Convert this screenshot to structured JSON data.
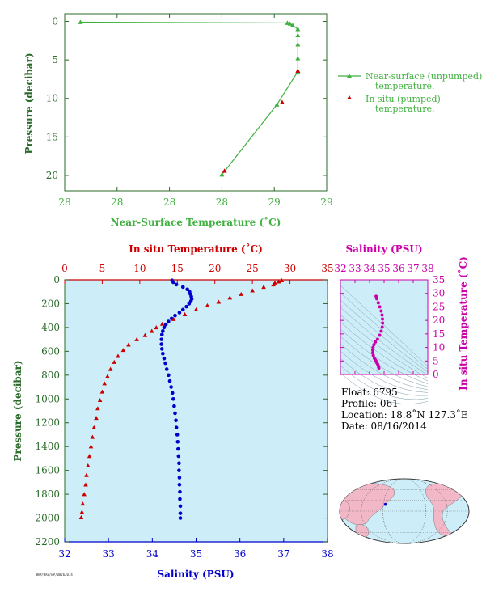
{
  "colors": {
    "green": "#40b040",
    "axis_green": "#2a6a2a",
    "red": "#cc0000",
    "blue": "#0000cc",
    "magenta": "#cc00aa",
    "panel_bg": "#cdeef8"
  },
  "chart_data": [
    {
      "type": "line",
      "title": "",
      "xlabel": "Near-Surface Temperature (˚C)",
      "ylabel": "Pressure (decibar)",
      "x_tick_labels": [
        "28",
        "28",
        "28",
        "28",
        "29",
        "29"
      ],
      "y_ticks": [
        "0",
        "5",
        "10",
        "15",
        "20"
      ],
      "xlim": [
        28.0,
        29.0
      ],
      "ylim": [
        22,
        -1
      ],
      "legend_position": "right",
      "series": [
        {
          "name": "Near-surface (unpumped) temperature.",
          "marker": "triangle",
          "color": "#40b040",
          "points": [
            [
              28.06,
              0.1
            ],
            [
              28.85,
              0.2
            ],
            [
              28.86,
              0.3
            ],
            [
              28.87,
              0.5
            ],
            [
              28.89,
              1
            ],
            [
              28.89,
              1.8
            ],
            [
              28.89,
              3
            ],
            [
              28.89,
              4.8
            ],
            [
              28.89,
              6.5
            ],
            [
              28.81,
              10.8
            ],
            [
              28.6,
              19.9
            ]
          ]
        },
        {
          "name": "In situ (pumped) temperature.",
          "marker": "triangle",
          "color": "#cc0000",
          "points": [
            [
              28.89,
              6.4
            ],
            [
              28.83,
              10.5
            ],
            [
              28.61,
              19.4
            ]
          ]
        }
      ]
    },
    {
      "type": "line",
      "title": "",
      "top_axis_label": "In situ Temperature (˚C)",
      "top_ticks": [
        "0",
        "5",
        "10",
        "15",
        "20",
        "25",
        "30",
        "35"
      ],
      "xlabel": "Salinity (PSU)",
      "x_ticks": [
        "32",
        "33",
        "34",
        "35",
        "36",
        "37",
        "38"
      ],
      "ylabel": "Pressure (decibar)",
      "y_ticks": [
        "0",
        "200",
        "400",
        "600",
        "800",
        "1000",
        "1200",
        "1400",
        "1600",
        "1800",
        "2000",
        "2200"
      ],
      "temperature_range": [
        0,
        35
      ],
      "salinity_range": [
        32,
        38
      ],
      "pressure_range": [
        0,
        2200
      ],
      "series": [
        {
          "name": "In situ Temperature",
          "color": "#cc0000",
          "marker": "triangle",
          "points": [
            [
              28.9,
              5
            ],
            [
              28.5,
              15
            ],
            [
              28.0,
              25
            ],
            [
              27.8,
              40
            ],
            [
              26.5,
              60
            ],
            [
              25.0,
              90
            ],
            [
              23.5,
              120
            ],
            [
              22.0,
              150
            ],
            [
              20.5,
              185
            ],
            [
              19.0,
              215
            ],
            [
              17.5,
              250
            ],
            [
              16.0,
              290
            ],
            [
              14.5,
              330
            ],
            [
              13.0,
              370
            ],
            [
              12.2,
              400
            ],
            [
              11.6,
              430
            ],
            [
              10.7,
              465
            ],
            [
              9.6,
              500
            ],
            [
              8.5,
              545
            ],
            [
              7.8,
              590
            ],
            [
              7.1,
              640
            ],
            [
              6.6,
              690
            ],
            [
              6.1,
              750
            ],
            [
              5.7,
              810
            ],
            [
              5.3,
              870
            ],
            [
              5.0,
              940
            ],
            [
              4.7,
              1010
            ],
            [
              4.4,
              1080
            ],
            [
              4.2,
              1160
            ],
            [
              3.9,
              1240
            ],
            [
              3.7,
              1320
            ],
            [
              3.5,
              1400
            ],
            [
              3.3,
              1480
            ],
            [
              3.1,
              1560
            ],
            [
              2.9,
              1640
            ],
            [
              2.8,
              1720
            ],
            [
              2.6,
              1800
            ],
            [
              2.4,
              1880
            ],
            [
              2.3,
              1950
            ],
            [
              2.2,
              1995
            ]
          ]
        },
        {
          "name": "Salinity",
          "color": "#0000cc",
          "marker": "dot",
          "points": [
            [
              34.45,
              5
            ],
            [
              34.48,
              20
            ],
            [
              34.55,
              40
            ],
            [
              34.7,
              60
            ],
            [
              34.8,
              80
            ],
            [
              34.85,
              100
            ],
            [
              34.87,
              120
            ],
            [
              34.89,
              140
            ],
            [
              34.9,
              160
            ],
            [
              34.88,
              180
            ],
            [
              34.84,
              200
            ],
            [
              34.78,
              225
            ],
            [
              34.7,
              250
            ],
            [
              34.62,
              275
            ],
            [
              34.52,
              300
            ],
            [
              34.44,
              325
            ],
            [
              34.37,
              350
            ],
            [
              34.31,
              375
            ],
            [
              34.27,
              400
            ],
            [
              34.24,
              430
            ],
            [
              34.22,
              460
            ],
            [
              34.21,
              500
            ],
            [
              34.21,
              540
            ],
            [
              34.22,
              580
            ],
            [
              34.24,
              620
            ],
            [
              34.27,
              660
            ],
            [
              34.3,
              700
            ],
            [
              34.33,
              750
            ],
            [
              34.37,
              800
            ],
            [
              34.4,
              850
            ],
            [
              34.43,
              900
            ],
            [
              34.46,
              950
            ],
            [
              34.48,
              1000
            ],
            [
              34.5,
              1060
            ],
            [
              34.52,
              1120
            ],
            [
              34.54,
              1180
            ],
            [
              34.55,
              1240
            ],
            [
              34.57,
              1300
            ],
            [
              34.58,
              1360
            ],
            [
              34.59,
              1420
            ],
            [
              34.6,
              1480
            ],
            [
              34.61,
              1540
            ],
            [
              34.61,
              1600
            ],
            [
              34.62,
              1660
            ],
            [
              34.62,
              1720
            ],
            [
              34.63,
              1780
            ],
            [
              34.63,
              1840
            ],
            [
              34.64,
              1900
            ],
            [
              34.64,
              1960
            ],
            [
              34.64,
              2000
            ]
          ]
        }
      ]
    },
    {
      "type": "scatter",
      "title": "",
      "xlabel": "Salinity (PSU)",
      "ylabel": "In situ Temperature (˚C)",
      "x_ticks": [
        "32",
        "33",
        "34",
        "35",
        "36",
        "37",
        "38"
      ],
      "y_ticks": [
        "0",
        "5",
        "10",
        "15",
        "20",
        "25",
        "30",
        "35"
      ],
      "xlim": [
        32,
        38
      ],
      "ylim": [
        0,
        35
      ],
      "color": "#cc00aa",
      "points": [
        [
          34.45,
          28.9
        ],
        [
          34.5,
          28.0
        ],
        [
          34.6,
          26.5
        ],
        [
          34.7,
          25.0
        ],
        [
          34.8,
          23.5
        ],
        [
          34.86,
          22.0
        ],
        [
          34.89,
          20.5
        ],
        [
          34.9,
          19.0
        ],
        [
          34.87,
          17.5
        ],
        [
          34.8,
          16.0
        ],
        [
          34.7,
          14.5
        ],
        [
          34.55,
          13.0
        ],
        [
          34.4,
          12.0
        ],
        [
          34.3,
          11.0
        ],
        [
          34.24,
          10.0
        ],
        [
          34.22,
          9.0
        ],
        [
          34.22,
          8.0
        ],
        [
          34.26,
          7.0
        ],
        [
          34.33,
          6.0
        ],
        [
          34.4,
          5.4
        ],
        [
          34.45,
          4.9
        ],
        [
          34.5,
          4.4
        ],
        [
          34.55,
          3.9
        ],
        [
          34.59,
          3.4
        ],
        [
          34.62,
          2.8
        ],
        [
          34.64,
          2.3
        ]
      ]
    }
  ],
  "info": {
    "float": "Float:  6795",
    "profile": "Profile:  061",
    "location": "Location:  18.8˚N  127.3˚E",
    "date": "Date:  08/16/2014"
  },
  "footer": "NWM/WAB/EP/08262014",
  "map": {
    "float_lat": 18.8,
    "float_lon": 127.3
  }
}
